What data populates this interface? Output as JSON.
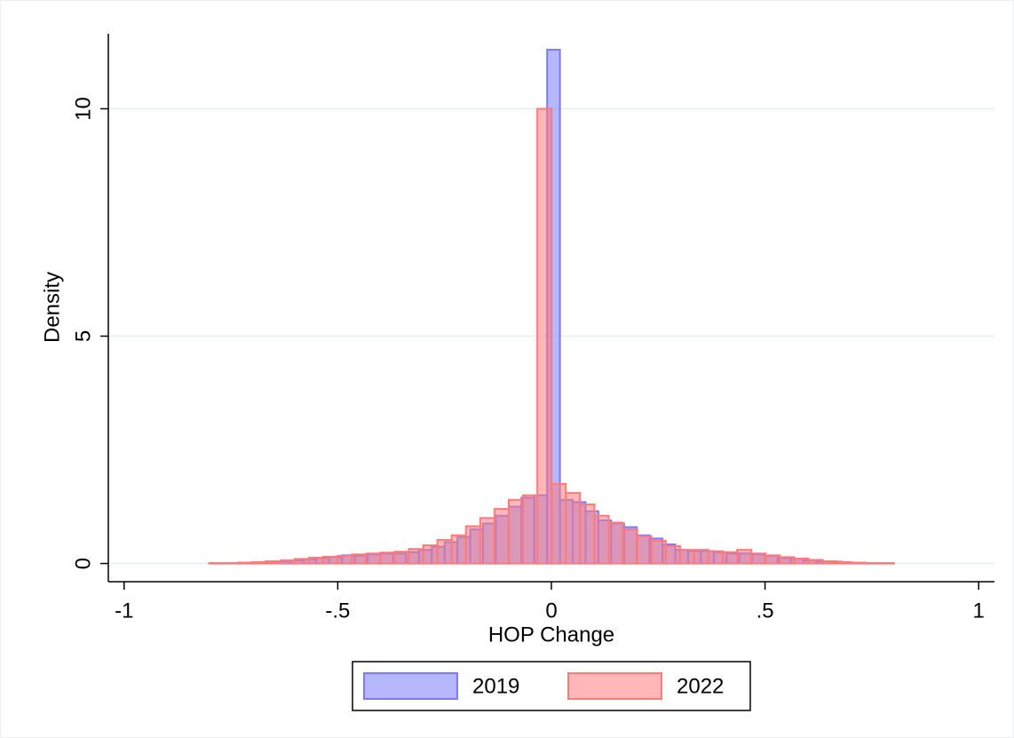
{
  "chart_data": {
    "type": "histogram",
    "xlabel": "HOP Change",
    "ylabel": "Density",
    "xlim": [
      -1.037,
      1.037
    ],
    "ylim": [
      -0.4,
      11.65
    ],
    "xticks": [
      -1,
      {
        "value": -0.5,
        "label": "-.5"
      },
      0,
      {
        "value": 0.5,
        "label": ".5"
      },
      1
    ],
    "yticks": [
      0,
      5,
      10
    ],
    "grid": true,
    "legend": "bottom",
    "series": [
      {
        "name": "2019",
        "color": "#7b7bff",
        "bins": [
          -0.85,
          -0.82,
          -0.79,
          -0.76,
          -0.73,
          -0.7,
          -0.67,
          -0.64,
          -0.61,
          -0.58,
          -0.55,
          -0.52,
          -0.49,
          -0.46,
          -0.43,
          -0.4,
          -0.37,
          -0.34,
          -0.31,
          -0.28,
          -0.25,
          -0.22,
          -0.19,
          -0.16,
          -0.13,
          -0.1,
          -0.07,
          -0.04,
          -0.01,
          0.02,
          0.05,
          0.08,
          0.11,
          0.14,
          0.17,
          0.2,
          0.23,
          0.26,
          0.29,
          0.32,
          0.35,
          0.38,
          0.41,
          0.44,
          0.47,
          0.5,
          0.53,
          0.56,
          0.59,
          0.62,
          0.65,
          0.68,
          0.71,
          0.74,
          0.77,
          0.8,
          0.83,
          0.86,
          0.89,
          0.92
        ],
        "values": [
          0,
          0,
          0.01,
          0.01,
          0.02,
          0.03,
          0.04,
          0.05,
          0.07,
          0.09,
          0.12,
          0.14,
          0.18,
          0.17,
          0.2,
          0.22,
          0.22,
          0.25,
          0.3,
          0.37,
          0.47,
          0.58,
          0.75,
          0.88,
          1.05,
          1.25,
          1.45,
          1.5,
          11.3,
          1.4,
          1.35,
          1.15,
          0.95,
          0.88,
          0.8,
          0.62,
          0.55,
          0.42,
          0.3,
          0.27,
          0.27,
          0.25,
          0.22,
          0.22,
          0.2,
          0.17,
          0.12,
          0.1,
          0.07,
          0.05,
          0.04,
          0.02,
          0.01,
          0.01,
          0.01,
          0,
          0,
          0,
          0
        ]
      },
      {
        "name": "2022",
        "color": "#ff7b7b",
        "bins": [
          -0.868,
          -0.8346,
          -0.8012,
          -0.7678,
          -0.7344,
          -0.701,
          -0.6676,
          -0.6342,
          -0.6008,
          -0.5674,
          -0.534,
          -0.5006,
          -0.4672,
          -0.4338,
          -0.4004,
          -0.367,
          -0.3336,
          -0.3002,
          -0.2668,
          -0.2334,
          -0.2,
          -0.1666,
          -0.1332,
          -0.0998,
          -0.0664,
          -0.033,
          0.0004,
          0.0338,
          0.0672,
          0.1006,
          0.134,
          0.1674,
          0.2008,
          0.2342,
          0.2676,
          0.301,
          0.3344,
          0.3678,
          0.4012,
          0.4346,
          0.468,
          0.5014,
          0.5348,
          0.5682,
          0.6016,
          0.635,
          0.6684,
          0.7018,
          0.7352,
          0.7686,
          0.802,
          0.8354,
          0.8688,
          0.9022
        ],
        "values": [
          0,
          0,
          0.01,
          0.01,
          0.02,
          0.03,
          0.05,
          0.07,
          0.1,
          0.13,
          0.15,
          0.17,
          0.2,
          0.22,
          0.24,
          0.26,
          0.32,
          0.4,
          0.52,
          0.62,
          0.82,
          1.0,
          1.2,
          1.4,
          1.5,
          10.0,
          1.75,
          1.55,
          1.3,
          1.05,
          0.9,
          0.75,
          0.6,
          0.5,
          0.38,
          0.3,
          0.3,
          0.27,
          0.25,
          0.3,
          0.22,
          0.18,
          0.14,
          0.11,
          0.08,
          0.05,
          0.03,
          0.02,
          0.01,
          0.01,
          0,
          0,
          0
        ]
      }
    ]
  }
}
